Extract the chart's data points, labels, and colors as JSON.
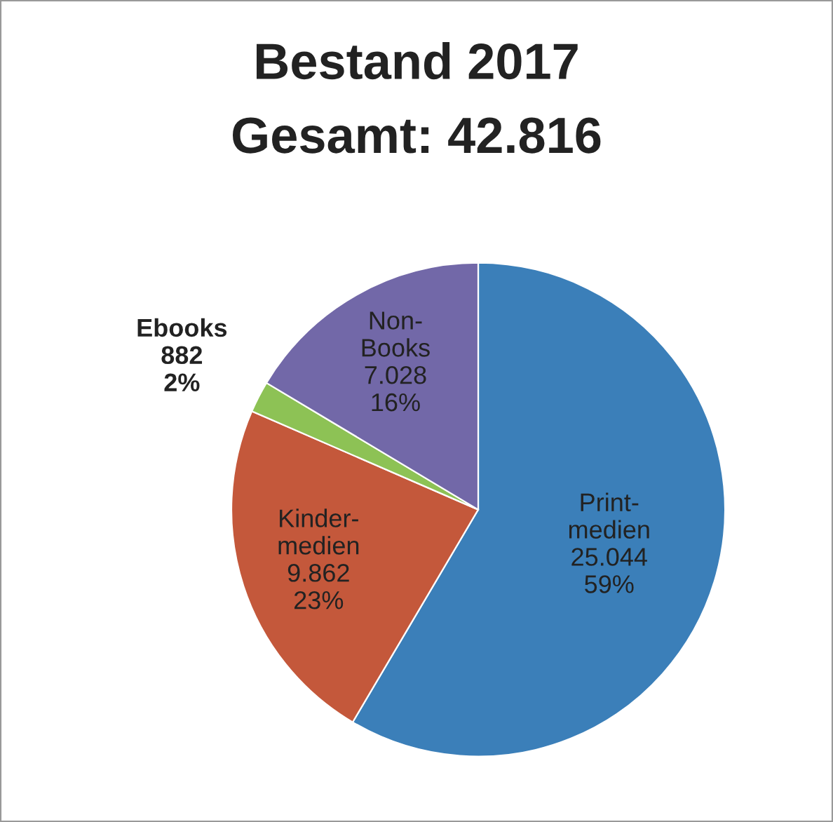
{
  "chart_data": {
    "type": "pie",
    "title": "Bestand 2017",
    "subtitle": "Gesamt: 42.816",
    "categories": [
      "Print-\nmedien",
      "Kinder-\nmedien",
      "Ebooks",
      "Non-\nBooks"
    ],
    "values": [
      25044,
      9862,
      882,
      7028
    ],
    "value_labels": [
      "25.044\n59%",
      "9.862\n23%",
      "882\n2%",
      "7.028\n16%"
    ],
    "colors": [
      "#3b7fb9",
      "#c4583b",
      "#8dc255",
      "#7268a8"
    ],
    "legend": false
  }
}
